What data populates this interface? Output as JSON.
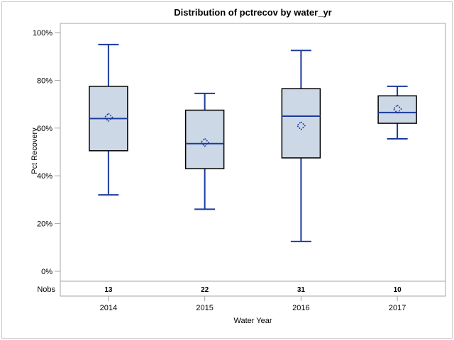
{
  "chart_data": {
    "type": "boxplot",
    "title": "Distribution of pctrecov by water_yr",
    "xlabel": "Water Year",
    "ylabel": "Pct Recovery",
    "ylim": [
      0,
      100
    ],
    "grid": "off",
    "legend": "none",
    "yticks": [
      0,
      20,
      40,
      60,
      80,
      100
    ],
    "ytick_labels": [
      "0%",
      "20%",
      "40%",
      "60%",
      "80%",
      "100%"
    ],
    "categories": [
      "2014",
      "2015",
      "2016",
      "2017"
    ],
    "nobs_label": "Nobs",
    "nobs": [
      "13",
      "22",
      "31",
      "10"
    ],
    "boxes": [
      {
        "category": "2014",
        "whisker_low": 32,
        "q1": 50.5,
        "median": 64,
        "mean": 64.5,
        "q3": 77.5,
        "whisker_high": 95
      },
      {
        "category": "2015",
        "whisker_low": 26,
        "q1": 43,
        "median": 53.5,
        "mean": 54,
        "q3": 67.5,
        "whisker_high": 74.5
      },
      {
        "category": "2016",
        "whisker_low": 12.5,
        "q1": 47.5,
        "median": 65,
        "mean": 61,
        "q3": 76.5,
        "whisker_high": 92.5
      },
      {
        "category": "2017",
        "whisker_low": 55.5,
        "q1": 62,
        "median": 66.5,
        "mean": 68,
        "q3": 73.5,
        "whisker_high": 77.5
      }
    ],
    "colors": {
      "box_fill": "#cdd8e6",
      "box_border": "#000000",
      "line": "#1b3a9e",
      "axis": "#a6a6a6",
      "text": "#000000",
      "frame_border": "#c6c6c6",
      "background": "#ffffff"
    }
  }
}
